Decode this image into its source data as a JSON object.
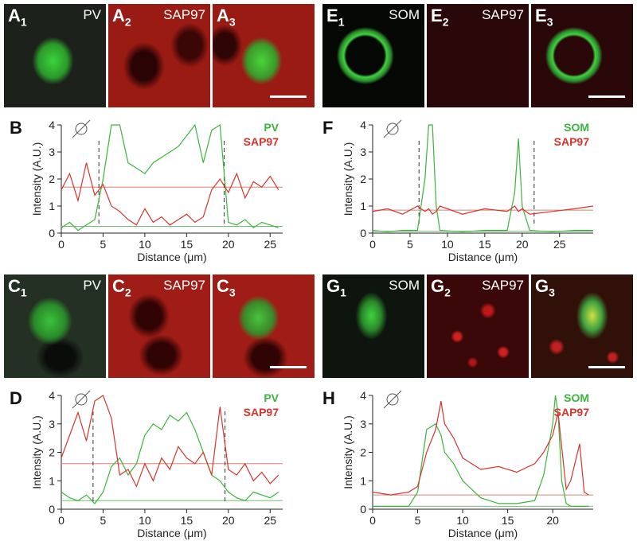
{
  "image_panels": [
    {
      "letter": "A",
      "sub": "1",
      "stain": "PV"
    },
    {
      "letter": "A",
      "sub": "2",
      "stain": "SAP97"
    },
    {
      "letter": "A",
      "sub": "3"
    },
    {
      "letter": "E",
      "sub": "1",
      "stain": "SOM"
    },
    {
      "letter": "E",
      "sub": "2",
      "stain": "SAP97"
    },
    {
      "letter": "E",
      "sub": "3"
    },
    {
      "letter": "C",
      "sub": "1",
      "stain": "PV"
    },
    {
      "letter": "C",
      "sub": "2",
      "stain": "SAP97"
    },
    {
      "letter": "C",
      "sub": "3"
    },
    {
      "letter": "G",
      "sub": "1",
      "stain": "SOM"
    },
    {
      "letter": "G",
      "sub": "2",
      "stain": "SAP97"
    },
    {
      "letter": "G",
      "sub": "3"
    }
  ],
  "chart_data": [
    {
      "type": "line",
      "panel": "B",
      "xlabel": "Distance (μm)",
      "ylabel": "Intensity (A.U.)",
      "xlim": [
        0,
        26.5
      ],
      "xticks": [
        0,
        5,
        10,
        15,
        20,
        25
      ],
      "ylim": [
        0,
        4
      ],
      "yticks": [
        0,
        1,
        2,
        3,
        4
      ],
      "x": [
        0,
        1,
        2,
        3,
        4,
        5,
        6,
        7,
        8,
        9,
        10,
        11,
        12,
        13,
        14,
        15,
        16,
        17,
        18,
        19,
        20,
        21,
        22,
        23,
        24,
        25,
        26
      ],
      "series": [
        {
          "name": "PV",
          "color": "#3cb53c",
          "values": [
            0.2,
            0.4,
            0.1,
            0.3,
            0.5,
            2.0,
            4.0,
            4.0,
            2.6,
            2.4,
            2.2,
            2.6,
            2.8,
            3.0,
            3.2,
            3.6,
            4.0,
            2.6,
            3.8,
            4.0,
            0.4,
            0.3,
            0.5,
            0.2,
            0.4,
            0.3,
            0.2
          ]
        },
        {
          "name": "SAP97",
          "color": "#d8342c",
          "values": [
            1.6,
            2.2,
            1.2,
            2.6,
            1.4,
            1.8,
            1.0,
            0.8,
            0.5,
            0.3,
            0.9,
            0.4,
            0.6,
            0.3,
            0.5,
            0.7,
            0.4,
            0.6,
            1.6,
            2.0,
            1.5,
            2.2,
            1.3,
            1.9,
            1.7,
            2.1,
            1.6
          ]
        }
      ],
      "hlines": [
        {
          "y": 1.7,
          "color": "#e08070"
        },
        {
          "y": 0.25,
          "color": "#70c070"
        }
      ],
      "vlines": [
        4.5,
        19.5
      ]
    },
    {
      "type": "line",
      "panel": "F",
      "xlabel": "Distance (μm)",
      "ylabel": "Intensity (A.U.)",
      "xlim": [
        0,
        29.5
      ],
      "xticks": [
        0,
        5,
        10,
        15,
        20,
        25
      ],
      "ylim": [
        0,
        4
      ],
      "yticks": [
        0,
        1,
        2,
        3,
        4
      ],
      "x": [
        0,
        2,
        4,
        6,
        7,
        7.5,
        8,
        8.5,
        9,
        12,
        15,
        18,
        19,
        19.5,
        20,
        21,
        24,
        27,
        29.5
      ],
      "series": [
        {
          "name": "SOM",
          "color": "#3cb53c",
          "values": [
            0.1,
            0.05,
            0.1,
            0.1,
            2.0,
            4.0,
            4.0,
            1.0,
            0.1,
            0.05,
            0.1,
            0.1,
            1.5,
            3.5,
            1.0,
            0.1,
            0.05,
            0.1,
            0.1
          ]
        },
        {
          "name": "SAP97",
          "color": "#d8342c",
          "values": [
            0.8,
            0.9,
            0.7,
            1.0,
            0.8,
            0.9,
            0.7,
            0.8,
            1.0,
            0.7,
            0.9,
            0.8,
            1.0,
            0.8,
            0.9,
            0.7,
            0.8,
            0.9,
            1.0
          ]
        }
      ],
      "hlines": [
        {
          "y": 0.85,
          "color": "#e08070"
        },
        {
          "y": 0.07,
          "color": "#70c070"
        }
      ],
      "vlines": [
        6.2,
        21.6
      ]
    },
    {
      "type": "line",
      "panel": "D",
      "xlabel": "Distance (μm)",
      "ylabel": "Intensity (A.U.)",
      "xlim": [
        0,
        26.5
      ],
      "xticks": [
        0,
        5,
        10,
        15,
        20,
        25
      ],
      "ylim": [
        0,
        4
      ],
      "yticks": [
        0,
        1,
        2,
        3,
        4
      ],
      "x": [
        0,
        1,
        2,
        3,
        4,
        5,
        6,
        7,
        8,
        9,
        10,
        11,
        12,
        13,
        14,
        15,
        16,
        17,
        18,
        19,
        20,
        21,
        22,
        23,
        24,
        25,
        26
      ],
      "series": [
        {
          "name": "PV",
          "color": "#3cb53c",
          "values": [
            0.6,
            0.4,
            0.3,
            0.5,
            0.2,
            0.6,
            1.5,
            1.8,
            1.2,
            1.6,
            2.6,
            3.0,
            2.8,
            3.3,
            3.1,
            3.4,
            2.8,
            2.0,
            1.2,
            1.0,
            0.6,
            0.4,
            0.3,
            0.6,
            0.5,
            0.4,
            0.6
          ]
        },
        {
          "name": "SAP97",
          "color": "#d8342c",
          "values": [
            1.8,
            2.6,
            3.4,
            2.4,
            3.8,
            4.0,
            3.2,
            1.2,
            1.4,
            0.8,
            1.6,
            1.0,
            1.8,
            1.4,
            2.2,
            1.8,
            1.6,
            2.0,
            1.2,
            3.6,
            1.4,
            1.2,
            1.6,
            1.0,
            1.3,
            0.9,
            1.2
          ]
        }
      ],
      "hlines": [
        {
          "y": 1.6,
          "color": "#e08070"
        },
        {
          "y": 0.3,
          "color": "#70c070"
        }
      ],
      "vlines": [
        3.8,
        19.6
      ]
    },
    {
      "type": "line",
      "panel": "H",
      "xlabel": "Distance (μm)",
      "ylabel": "Intensity (A.U.)",
      "xlim": [
        0,
        24.5
      ],
      "xticks": [
        0,
        5,
        10,
        15,
        20
      ],
      "ylim": [
        0,
        4
      ],
      "yticks": [
        0,
        1,
        2,
        3,
        4
      ],
      "x": [
        0,
        2,
        4,
        5,
        6,
        7,
        7.6,
        8,
        9,
        10,
        12,
        14,
        16,
        18,
        19,
        20,
        20.3,
        20.6,
        21,
        21.5,
        22,
        23,
        23.5,
        24
      ],
      "series": [
        {
          "name": "SOM",
          "color": "#3cb53c",
          "values": [
            0.1,
            0.1,
            0.1,
            0.6,
            2.8,
            3.0,
            2.6,
            2.0,
            1.6,
            1.0,
            0.4,
            0.2,
            0.2,
            0.3,
            1.2,
            3.0,
            4.0,
            3.4,
            1.0,
            0.2,
            0.1,
            0.1,
            0.1,
            0.1
          ]
        },
        {
          "name": "SAP97",
          "color": "#d8342c",
          "values": [
            0.6,
            0.5,
            0.6,
            0.8,
            2.0,
            2.8,
            3.8,
            3.0,
            2.5,
            1.8,
            1.4,
            1.5,
            1.3,
            1.6,
            2.0,
            2.6,
            3.0,
            3.4,
            2.2,
            0.7,
            1.0,
            2.3,
            0.6,
            0.5
          ]
        }
      ],
      "hlines": [
        {
          "y": 0.5,
          "color": "#e08070"
        },
        {
          "y": 0.1,
          "color": "#70c070"
        }
      ],
      "vlines": []
    }
  ]
}
